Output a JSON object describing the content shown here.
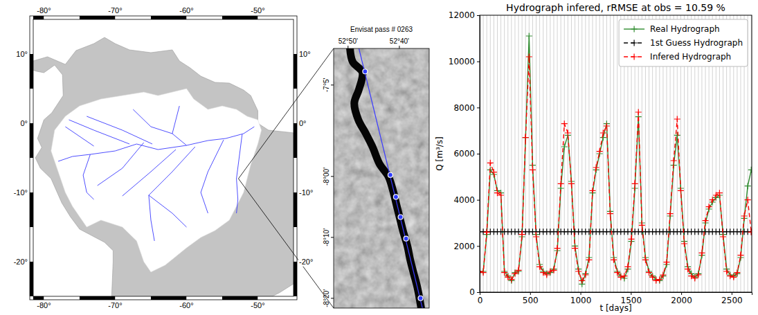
{
  "map": {
    "xlim": [
      -81.5,
      -45
    ],
    "ylim": [
      -25,
      15
    ],
    "xticks": [
      {
        "value": -80,
        "label": "-80°"
      },
      {
        "value": -70,
        "label": "-70°"
      },
      {
        "value": -60,
        "label": "-60°"
      },
      {
        "value": -50,
        "label": "-50°"
      }
    ],
    "yticks": [
      {
        "value": 10,
        "label": "10°"
      },
      {
        "value": 0,
        "label": "0°"
      },
      {
        "value": -10,
        "label": "-10°"
      },
      {
        "value": -20,
        "label": "-20°"
      }
    ],
    "land": [
      [
        -77,
        8.5
      ],
      [
        -79.5,
        9.6
      ],
      [
        -81.5,
        9
      ],
      [
        -83.5,
        10.5
      ],
      [
        -83.5,
        15
      ],
      [
        -95,
        15
      ],
      [
        -95,
        13
      ],
      [
        -87,
        12.5
      ],
      [
        -85.7,
        10
      ],
      [
        -83.5,
        8.3
      ],
      [
        -81,
        7.5
      ],
      [
        -80,
        7.3
      ],
      [
        -78.5,
        8.4
      ],
      [
        -77.4,
        7
      ],
      [
        -77.3,
        4
      ],
      [
        -78.9,
        1.5
      ],
      [
        -80,
        0.5
      ],
      [
        -80.9,
        -2.2
      ],
      [
        -80.3,
        -3.5
      ],
      [
        -81.2,
        -5
      ],
      [
        -80.5,
        -6.5
      ],
      [
        -79,
        -8
      ],
      [
        -77.5,
        -11.5
      ],
      [
        -76.3,
        -13.5
      ],
      [
        -75,
        -15.3
      ],
      [
        -71.5,
        -17.2
      ],
      [
        -70.3,
        -18.4
      ],
      [
        -70.3,
        -20
      ],
      [
        -70.5,
        -25
      ],
      [
        -70.6,
        -30
      ],
      [
        -48,
        -30
      ],
      [
        -48,
        -25
      ],
      [
        -47,
        -24.5
      ],
      [
        -45,
        -23.2
      ],
      [
        -40,
        -22
      ],
      [
        -40,
        0
      ],
      [
        -44,
        -1.5
      ],
      [
        -48.5,
        -1
      ],
      [
        -50,
        0
      ],
      [
        -50,
        1.8
      ],
      [
        -51,
        4
      ],
      [
        -52,
        4.8
      ],
      [
        -54,
        5.8
      ],
      [
        -56,
        5.9
      ],
      [
        -58,
        6.8
      ],
      [
        -59.5,
        8
      ],
      [
        -61,
        9
      ],
      [
        -62,
        10.6
      ],
      [
        -65,
        10.2
      ],
      [
        -68,
        10.6
      ],
      [
        -70,
        11.5
      ],
      [
        -71.5,
        12.4
      ],
      [
        -73,
        11.5
      ],
      [
        -75.5,
        10.5
      ],
      [
        -77,
        8.5
      ]
    ],
    "basin": [
      [
        -77,
        1
      ],
      [
        -75,
        2.5
      ],
      [
        -72,
        3.5
      ],
      [
        -69,
        4
      ],
      [
        -66,
        4.5
      ],
      [
        -64,
        4
      ],
      [
        -62,
        4.5
      ],
      [
        -60,
        5
      ],
      [
        -59,
        3.5
      ],
      [
        -57,
        2
      ],
      [
        -55,
        2.5
      ],
      [
        -53,
        2
      ],
      [
        -51.5,
        1
      ],
      [
        -50,
        0.5
      ],
      [
        -49.5,
        -1
      ],
      [
        -50,
        -3
      ],
      [
        -51,
        -6
      ],
      [
        -52,
        -10
      ],
      [
        -54,
        -14
      ],
      [
        -56,
        -15.5
      ],
      [
        -58,
        -16.5
      ],
      [
        -60,
        -18
      ],
      [
        -63,
        -20.5
      ],
      [
        -65,
        -21.5
      ],
      [
        -66,
        -20
      ],
      [
        -67,
        -17
      ],
      [
        -69,
        -15
      ],
      [
        -72,
        -14
      ],
      [
        -74,
        -15
      ],
      [
        -76,
        -12
      ],
      [
        -77,
        -10
      ],
      [
        -78,
        -7
      ],
      [
        -79,
        -4
      ],
      [
        -78.5,
        -1
      ]
    ],
    "rivers": [
      [
        [
          -73.5,
          -4.5
        ],
        [
          -70,
          -4
        ],
        [
          -67,
          -3
        ],
        [
          -64,
          -3.8
        ],
        [
          -60,
          -3.2
        ],
        [
          -57,
          -2.5
        ],
        [
          -54.5,
          -2.2
        ],
        [
          -52,
          -1.5
        ],
        [
          -50.5,
          -0.5
        ]
      ],
      [
        [
          -73.5,
          -4.5
        ],
        [
          -74.5,
          -7.5
        ],
        [
          -74,
          -10
        ],
        [
          -73,
          -11
        ]
      ],
      [
        [
          -73.5,
          -4.5
        ],
        [
          -76,
          -4.8
        ],
        [
          -78,
          -5.5
        ]
      ],
      [
        [
          -73,
          -3.3
        ],
        [
          -77,
          -0.5
        ]
      ],
      [
        [
          -68,
          -3
        ],
        [
          -73,
          -1
        ],
        [
          -76.5,
          0.5
        ]
      ],
      [
        [
          -64.8,
          -3
        ],
        [
          -69,
          -1
        ],
        [
          -74,
          1
        ]
      ],
      [
        [
          -60,
          -3.2
        ],
        [
          -62,
          -1.5
        ],
        [
          -65,
          -0.5
        ],
        [
          -67.5,
          2
        ]
      ],
      [
        [
          -62,
          -1.5
        ],
        [
          -61,
          2.5
        ]
      ],
      [
        [
          -66,
          -2.8
        ],
        [
          -69,
          -6.5
        ],
        [
          -72.5,
          -9
        ]
      ],
      [
        [
          -61.5,
          -3.8
        ],
        [
          -65,
          -7
        ],
        [
          -69,
          -10.5
        ]
      ],
      [
        [
          -58.8,
          -3.4
        ],
        [
          -62,
          -7
        ],
        [
          -65.3,
          -10.4
        ],
        [
          -65,
          -14
        ],
        [
          -64.5,
          -17
        ]
      ],
      [
        [
          -65.3,
          -10.4
        ],
        [
          -62,
          -13
        ],
        [
          -60,
          -15
        ]
      ],
      [
        [
          -54.8,
          -2.4
        ],
        [
          -57,
          -7
        ],
        [
          -58,
          -10
        ],
        [
          -57,
          -13
        ]
      ],
      [
        [
          -52.2,
          -1.6
        ],
        [
          -52.5,
          -4
        ],
        [
          -53,
          -8
        ],
        [
          -52.8,
          -11
        ],
        [
          -53,
          -13
        ]
      ]
    ]
  },
  "inset": {
    "title": "Envisat pass # 0263",
    "xlim": [
      -52.88,
      -52.57
    ],
    "ylim": [
      -8.36,
      -7.65
    ],
    "xticks": [
      {
        "value": -52.8333,
        "label": "52°50'"
      },
      {
        "value": -52.6667,
        "label": "52°40'"
      }
    ],
    "yticks": [
      {
        "value": -7.75,
        "label": "-7°5'"
      },
      {
        "value": -8,
        "label": "-8°00'"
      },
      {
        "value": -8.1667,
        "label": "-8°10'"
      },
      {
        "value": -8.3333,
        "label": "-8°20'"
      }
    ],
    "track": [
      [
        -52.798,
        -7.65
      ],
      [
        -52.592,
        -8.36
      ]
    ],
    "stations": [
      [
        -52.778,
        -7.713
      ],
      [
        -52.696,
        -7.996
      ],
      [
        -52.678,
        -8.056
      ],
      [
        -52.663,
        -8.111
      ],
      [
        -52.645,
        -8.17
      ],
      [
        -52.598,
        -8.333
      ]
    ],
    "river": [
      [
        -52.827,
        -7.65
      ],
      [
        -52.818,
        -7.687
      ],
      [
        -52.787,
        -7.715
      ],
      [
        -52.798,
        -7.762
      ],
      [
        -52.813,
        -7.799
      ],
      [
        -52.8,
        -7.845
      ],
      [
        -52.776,
        -7.882
      ],
      [
        -52.754,
        -7.919
      ],
      [
        -52.731,
        -7.966
      ],
      [
        -52.703,
        -7.999
      ],
      [
        -52.687,
        -8.04
      ],
      [
        -52.676,
        -8.078
      ],
      [
        -52.665,
        -8.115
      ],
      [
        -52.654,
        -8.152
      ],
      [
        -52.641,
        -8.189
      ],
      [
        -52.632,
        -8.226
      ],
      [
        -52.621,
        -8.263
      ],
      [
        -52.609,
        -8.301
      ],
      [
        -52.596,
        -8.36
      ]
    ]
  },
  "chart_data": {
    "type": "line",
    "title": "Hydrograph infered, rRMSE at obs = 10.59 %",
    "x_label": "t [days]",
    "y_label": "Q [m³/s]",
    "xlim": [
      0,
      2700
    ],
    "ylim": [
      0,
      12000
    ],
    "xticks": [
      0,
      500,
      1000,
      1500,
      2000,
      2500
    ],
    "yticks": [
      0,
      2000,
      4000,
      6000,
      8000,
      10000,
      12000
    ],
    "grid": true,
    "legend": "upper right",
    "x": [
      0,
      35,
      70,
      105,
      140,
      175,
      210,
      245,
      280,
      315,
      350,
      385,
      420,
      455,
      490,
      525,
      560,
      595,
      630,
      665,
      700,
      735,
      770,
      805,
      840,
      875,
      910,
      945,
      980,
      1015,
      1050,
      1085,
      1120,
      1155,
      1190,
      1225,
      1260,
      1295,
      1330,
      1365,
      1400,
      1435,
      1470,
      1505,
      1540,
      1575,
      1610,
      1645,
      1680,
      1715,
      1750,
      1785,
      1820,
      1855,
      1890,
      1925,
      1960,
      1995,
      2030,
      2065,
      2100,
      2135,
      2170,
      2205,
      2240,
      2275,
      2310,
      2345,
      2380,
      2415,
      2450,
      2485,
      2520,
      2555,
      2590,
      2625,
      2660,
      2695
    ],
    "series": [
      {
        "name": "Real Hydrograph",
        "color": "#2e8b2e",
        "line_style": "solid",
        "marker": "+",
        "values": [
          850,
          900,
          2500,
          5300,
          5100,
          4400,
          4300,
          900,
          700,
          500,
          850,
          900,
          2400,
          6700,
          11100,
          5500,
          2500,
          1200,
          900,
          800,
          850,
          1000,
          1800,
          4500,
          6300,
          6800,
          4800,
          2000,
          1000,
          350,
          800,
          1500,
          4300,
          5300,
          6000,
          6700,
          7300,
          3500,
          1500,
          900,
          700,
          600,
          1000,
          2200,
          4500,
          7600,
          3000,
          1500,
          900,
          700,
          550,
          500,
          700,
          1200,
          3300,
          5500,
          6800,
          4500,
          2200,
          1100,
          800,
          650,
          800,
          1600,
          3000,
          3600,
          3900,
          4100,
          4200,
          2500,
          1000,
          750,
          700,
          800,
          1500,
          3200,
          4600,
          5300
        ]
      },
      {
        "name": "1st Guess Hydrograph",
        "color": "#000000",
        "line_style": "dashed",
        "marker": "+",
        "values": [
          2620,
          2620,
          2620,
          2620,
          2620,
          2620,
          2620,
          2620,
          2620,
          2620,
          2620,
          2620,
          2620,
          2620,
          2620,
          2620,
          2620,
          2620,
          2620,
          2620,
          2620,
          2620,
          2620,
          2620,
          2620,
          2620,
          2620,
          2620,
          2620,
          2620,
          2620,
          2620,
          2620,
          2620,
          2620,
          2620,
          2620,
          2620,
          2620,
          2620,
          2620,
          2620,
          2620,
          2620,
          2620,
          2620,
          2620,
          2620,
          2620,
          2620,
          2620,
          2620,
          2620,
          2620,
          2620,
          2620,
          2620,
          2620,
          2620,
          2620,
          2620,
          2620,
          2620,
          2620,
          2620,
          2620,
          2620,
          2620,
          2620,
          2620,
          2620,
          2620,
          2620,
          2620,
          2620,
          2620,
          2620,
          2620
        ]
      },
      {
        "name": "Infered Hydrograph",
        "color": "#ff0000",
        "line_style": "dashed",
        "marker": "+",
        "values": [
          900,
          850,
          2600,
          5600,
          5200,
          4300,
          4200,
          850,
          650,
          550,
          800,
          950,
          2500,
          6700,
          10200,
          5300,
          2400,
          1100,
          850,
          750,
          900,
          950,
          1900,
          4700,
          7300,
          6900,
          4700,
          1900,
          900,
          500,
          750,
          1400,
          4400,
          5400,
          6100,
          6900,
          7200,
          3400,
          1400,
          850,
          650,
          700,
          1100,
          2300,
          4700,
          7800,
          2900,
          1400,
          850,
          650,
          500,
          550,
          750,
          1300,
          3400,
          5700,
          7500,
          4400,
          2100,
          1000,
          700,
          600,
          750,
          1700,
          3100,
          3700,
          4000,
          4200,
          4300,
          2400,
          900,
          700,
          650,
          850,
          1600,
          3300,
          4000,
          2600
        ]
      }
    ]
  }
}
